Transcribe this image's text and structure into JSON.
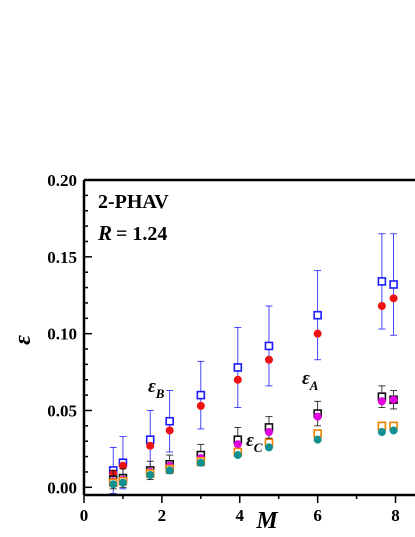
{
  "chart_data": {
    "type": "scatter",
    "title": "",
    "xlabel": "M",
    "ylabel": "ε",
    "xlim": [
      0,
      8.5
    ],
    "ylim": [
      -0.005,
      0.2
    ],
    "x_ticks": [
      "0",
      "2",
      "4",
      "6",
      "8"
    ],
    "y_ticks": [
      "0.00",
      "0.05",
      "0.10",
      "0.15",
      "0.20"
    ],
    "panel_label": "2-PHAV",
    "param_label": "R",
    "param_value": "= 1.24",
    "annotations": [
      {
        "base": "ε",
        "sub": "B"
      },
      {
        "base": "ε",
        "sub": "A"
      },
      {
        "base": "ε",
        "sub": "C"
      }
    ],
    "series": [
      {
        "marker": "open-square",
        "color": "#1a1aff",
        "x": [
          0.75,
          1.0,
          1.7,
          2.2,
          3.0,
          3.95,
          4.75,
          6.0,
          7.65,
          7.95
        ],
        "y": [
          0.011,
          0.016,
          0.031,
          0.043,
          0.06,
          0.078,
          0.092,
          0.112,
          0.134,
          0.132
        ],
        "err": [
          0.015,
          0.017,
          0.019,
          0.02,
          0.022,
          0.026,
          0.026,
          0.029,
          0.031,
          0.033
        ]
      },
      {
        "marker": "filled-circle",
        "color": "#ee1111",
        "x": [
          0.75,
          1.0,
          1.7,
          2.2,
          3.0,
          3.95,
          4.75,
          6.0,
          7.65,
          7.95
        ],
        "y": [
          0.009,
          0.014,
          0.027,
          0.037,
          0.053,
          0.07,
          0.083,
          0.1,
          0.118,
          0.123
        ]
      },
      {
        "marker": "open-square",
        "color": "#111111",
        "x": [
          0.75,
          1.0,
          1.7,
          2.2,
          3.0,
          3.95,
          4.75,
          6.0,
          7.65,
          7.95
        ],
        "y": [
          0.005,
          0.006,
          0.011,
          0.015,
          0.021,
          0.031,
          0.039,
          0.048,
          0.059,
          0.057
        ],
        "err": [
          0.006,
          0.006,
          0.006,
          0.006,
          0.007,
          0.008,
          0.007,
          0.008,
          0.007,
          0.006
        ]
      },
      {
        "marker": "filled-circle",
        "color": "#e000e0",
        "x": [
          0.75,
          1.0,
          1.7,
          2.2,
          3.0,
          3.95,
          4.75,
          6.0,
          7.65,
          7.95
        ],
        "y": [
          0.004,
          0.005,
          0.01,
          0.014,
          0.019,
          0.028,
          0.036,
          0.046,
          0.056,
          0.057
        ]
      },
      {
        "marker": "open-square",
        "color": "#f08000",
        "x": [
          0.75,
          1.0,
          1.7,
          2.2,
          3.0,
          3.95,
          4.75,
          6.0,
          7.65,
          7.95
        ],
        "y": [
          0.003,
          0.004,
          0.009,
          0.012,
          0.017,
          0.023,
          0.029,
          0.035,
          0.04,
          0.04
        ]
      },
      {
        "marker": "filled-circle",
        "color": "#109090",
        "x": [
          0.75,
          1.0,
          1.7,
          2.2,
          3.0,
          3.95,
          4.75,
          6.0,
          7.65,
          7.95
        ],
        "y": [
          0.002,
          0.003,
          0.008,
          0.011,
          0.016,
          0.021,
          0.026,
          0.031,
          0.036,
          0.037
        ]
      }
    ]
  }
}
